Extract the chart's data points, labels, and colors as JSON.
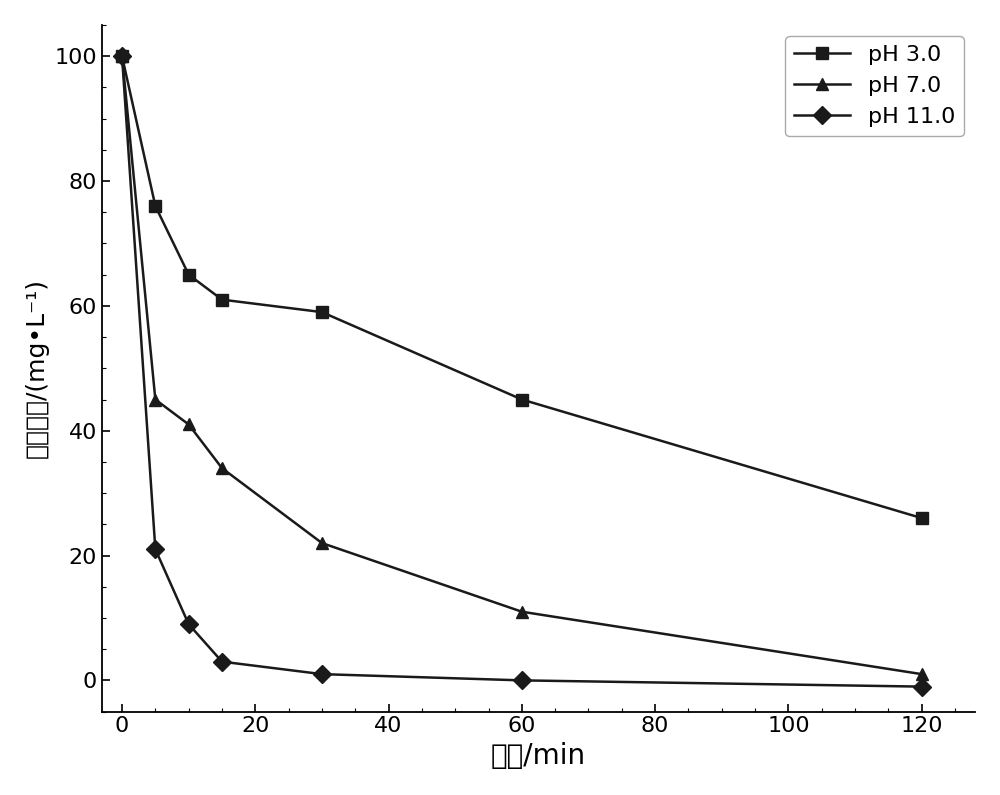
{
  "title": "",
  "xlabel": "时间/min",
  "ylabel": "苯酵浓度/(mg•L⁻¹)",
  "xlim": [
    -3,
    128
  ],
  "ylim": [
    -5,
    105
  ],
  "xticks": [
    0,
    20,
    40,
    60,
    80,
    100,
    120
  ],
  "yticks": [
    0,
    20,
    40,
    60,
    80,
    100
  ],
  "series": [
    {
      "label": "pH 3.0",
      "x": [
        0,
        5,
        10,
        15,
        30,
        60,
        120
      ],
      "y": [
        100,
        76,
        65,
        61,
        59,
        45,
        26
      ],
      "marker": "s",
      "color": "#1a1a1a",
      "linewidth": 1.8,
      "markersize": 9
    },
    {
      "label": "pH 7.0",
      "x": [
        0,
        5,
        10,
        15,
        30,
        60,
        120
      ],
      "y": [
        100,
        45,
        41,
        34,
        22,
        11,
        1
      ],
      "marker": "^",
      "color": "#1a1a1a",
      "linewidth": 1.8,
      "markersize": 9
    },
    {
      "label": "pH 11.0",
      "x": [
        0,
        5,
        10,
        15,
        30,
        60,
        120
      ],
      "y": [
        100,
        21,
        9,
        3,
        1,
        0,
        -1
      ],
      "marker": "D",
      "color": "#1a1a1a",
      "linewidth": 1.8,
      "markersize": 9
    }
  ],
  "legend_loc": "upper right",
  "background_color": "#ffffff",
  "axis_background": "#ffffff",
  "xlabel_fontsize": 20,
  "ylabel_fontsize": 18,
  "tick_fontsize": 16,
  "legend_fontsize": 16
}
